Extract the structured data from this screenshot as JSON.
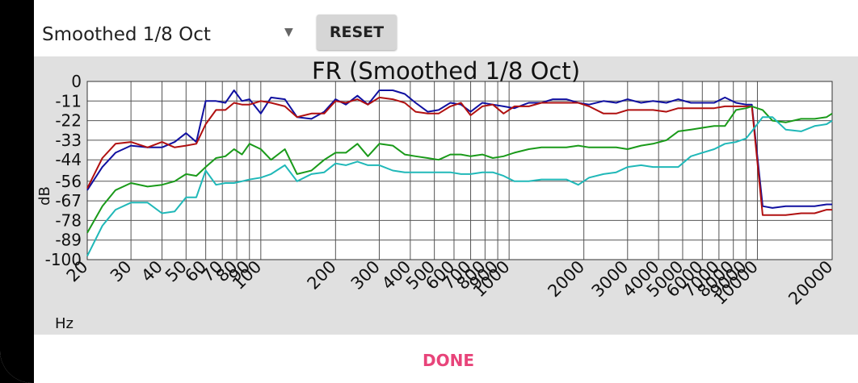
{
  "dropdown": {
    "selected": "Smoothed 1/8 Oct",
    "arrow_icon": "dropdown-arrow-icon"
  },
  "reset_label": "RESET",
  "done_label": "DONE",
  "chart_data": {
    "type": "line",
    "title": "FR (Smoothed 1/8 Oct)",
    "xlabel": "Hz",
    "ylabel": "dB",
    "xscale": "log",
    "xlim": [
      20,
      20000
    ],
    "ylim": [
      -100,
      0
    ],
    "yticks": [
      0,
      -11,
      -22,
      -33,
      -44,
      -56,
      -67,
      -78,
      -89,
      -100
    ],
    "ytick_labels": [
      "0",
      "-11",
      "-22",
      "-33",
      "-44",
      "-56",
      "-67",
      "-78",
      "-89",
      "-100"
    ],
    "xticks": [
      20,
      30,
      40,
      50,
      60,
      70,
      80,
      90,
      100,
      200,
      300,
      400,
      500,
      600,
      700,
      800,
      900,
      1000,
      2000,
      3000,
      4000,
      5000,
      6000,
      7000,
      8000,
      9000,
      10000,
      20000
    ],
    "xtick_labels": [
      "20",
      "30",
      "40",
      "50",
      "60",
      "70",
      "80",
      "90",
      "100",
      "200",
      "300",
      "400",
      "500",
      "600",
      "700",
      "800",
      "900",
      "1000",
      "2000",
      "3000",
      "4000",
      "5000",
      "6000",
      "7000",
      "8000",
      "9000",
      "10000",
      "20000"
    ],
    "grid": true,
    "series": [
      {
        "color": "#1010a0",
        "x": [
          20,
          23,
          26,
          30,
          35,
          40,
          45,
          50,
          55,
          60,
          66,
          72,
          78,
          84,
          90,
          100,
          110,
          125,
          140,
          160,
          180,
          200,
          220,
          245,
          270,
          300,
          340,
          380,
          420,
          470,
          520,
          580,
          640,
          700,
          780,
          860,
          950,
          1050,
          1200,
          1350,
          1500,
          1700,
          1900,
          2100,
          2400,
          2700,
          3000,
          3400,
          3800,
          4300,
          4800,
          5400,
          6000,
          6700,
          7400,
          8200,
          9000,
          9500,
          10500,
          11500,
          13000,
          15000,
          17000,
          19000,
          20000
        ],
        "y": [
          -61,
          -48,
          -40,
          -36,
          -37,
          -37,
          -34,
          -29,
          -34,
          -11,
          -11,
          -12,
          -5,
          -11,
          -10,
          -18,
          -9,
          -10,
          -20,
          -21,
          -17,
          -10,
          -13,
          -8,
          -13,
          -5,
          -5,
          -7,
          -12,
          -17,
          -16,
          -12,
          -13,
          -17,
          -12,
          -13,
          -14,
          -15,
          -12,
          -12,
          -10,
          -10,
          -12,
          -13,
          -11,
          -12,
          -10,
          -12,
          -11,
          -12,
          -10,
          -12,
          -12,
          -12,
          -9,
          -12,
          -13,
          -13,
          -70,
          -71,
          -70,
          -70,
          -70,
          -69,
          -69
        ]
      },
      {
        "color": "#b01010",
        "x": [
          20,
          23,
          26,
          30,
          35,
          40,
          45,
          50,
          55,
          60,
          66,
          72,
          78,
          84,
          90,
          100,
          110,
          125,
          140,
          160,
          180,
          200,
          220,
          245,
          270,
          300,
          340,
          380,
          420,
          470,
          520,
          580,
          640,
          700,
          780,
          860,
          950,
          1050,
          1200,
          1350,
          1500,
          1700,
          1900,
          2100,
          2400,
          2700,
          3000,
          3400,
          3800,
          4300,
          4800,
          5400,
          6000,
          6700,
          7400,
          8200,
          9000,
          9500,
          10500,
          11500,
          13000,
          15000,
          17000,
          19000,
          20000
        ],
        "y": [
          -60,
          -43,
          -35,
          -34,
          -37,
          -34,
          -37,
          -36,
          -35,
          -24,
          -16,
          -16,
          -12,
          -13,
          -13,
          -11,
          -12,
          -14,
          -20,
          -18,
          -18,
          -11,
          -12,
          -10,
          -13,
          -9,
          -10,
          -12,
          -17,
          -18,
          -18,
          -14,
          -12,
          -19,
          -14,
          -13,
          -18,
          -14,
          -14,
          -12,
          -12,
          -12,
          -12,
          -14,
          -18,
          -18,
          -16,
          -16,
          -16,
          -17,
          -15,
          -15,
          -15,
          -15,
          -14,
          -14,
          -14,
          -14,
          -75,
          -75,
          -75,
          -74,
          -74,
          -72,
          -72
        ]
      },
      {
        "color": "#1a9a1a",
        "x": [
          20,
          23,
          26,
          30,
          35,
          40,
          45,
          50,
          55,
          60,
          66,
          72,
          78,
          84,
          90,
          100,
          110,
          125,
          140,
          160,
          180,
          200,
          220,
          245,
          270,
          300,
          340,
          380,
          420,
          470,
          520,
          580,
          640,
          700,
          780,
          860,
          950,
          1050,
          1200,
          1350,
          1500,
          1700,
          1900,
          2100,
          2400,
          2700,
          3000,
          3400,
          3800,
          4300,
          4800,
          5400,
          6000,
          6700,
          7400,
          8200,
          9000,
          9500,
          10500,
          11500,
          13000,
          15000,
          17000,
          19000,
          20000
        ],
        "y": [
          -85,
          -70,
          -61,
          -57,
          -59,
          -58,
          -56,
          -52,
          -53,
          -48,
          -43,
          -42,
          -38,
          -41,
          -35,
          -38,
          -44,
          -38,
          -52,
          -50,
          -44,
          -40,
          -40,
          -35,
          -42,
          -35,
          -36,
          -41,
          -42,
          -43,
          -44,
          -41,
          -41,
          -42,
          -41,
          -43,
          -42,
          -40,
          -38,
          -37,
          -37,
          -37,
          -36,
          -37,
          -37,
          -37,
          -38,
          -36,
          -35,
          -33,
          -28,
          -27,
          -26,
          -25,
          -25,
          -16,
          -15,
          -14,
          -16,
          -22,
          -23,
          -21,
          -21,
          -20,
          -18
        ]
      },
      {
        "color": "#20b8b8",
        "x": [
          20,
          23,
          26,
          30,
          35,
          40,
          45,
          50,
          55,
          60,
          66,
          72,
          78,
          84,
          90,
          100,
          110,
          125,
          140,
          160,
          180,
          200,
          220,
          245,
          270,
          300,
          340,
          380,
          420,
          470,
          520,
          580,
          640,
          700,
          780,
          860,
          950,
          1050,
          1200,
          1350,
          1500,
          1700,
          1900,
          2100,
          2400,
          2700,
          3000,
          3400,
          3800,
          4300,
          4800,
          5400,
          6000,
          6700,
          7400,
          8200,
          9000,
          9500,
          10500,
          11500,
          13000,
          15000,
          17000,
          19000,
          20000
        ],
        "y": [
          -98,
          -81,
          -72,
          -68,
          -68,
          -74,
          -73,
          -65,
          -65,
          -50,
          -58,
          -57,
          -57,
          -56,
          -55,
          -54,
          -52,
          -47,
          -56,
          -52,
          -51,
          -46,
          -47,
          -45,
          -47,
          -47,
          -50,
          -51,
          -51,
          -51,
          -51,
          -51,
          -52,
          -52,
          -51,
          -51,
          -53,
          -56,
          -56,
          -55,
          -55,
          -55,
          -58,
          -54,
          -52,
          -51,
          -48,
          -47,
          -48,
          -48,
          -48,
          -42,
          -40,
          -38,
          -35,
          -34,
          -32,
          -28,
          -20,
          -20,
          -27,
          -28,
          -25,
          -24,
          -22
        ]
      }
    ]
  }
}
